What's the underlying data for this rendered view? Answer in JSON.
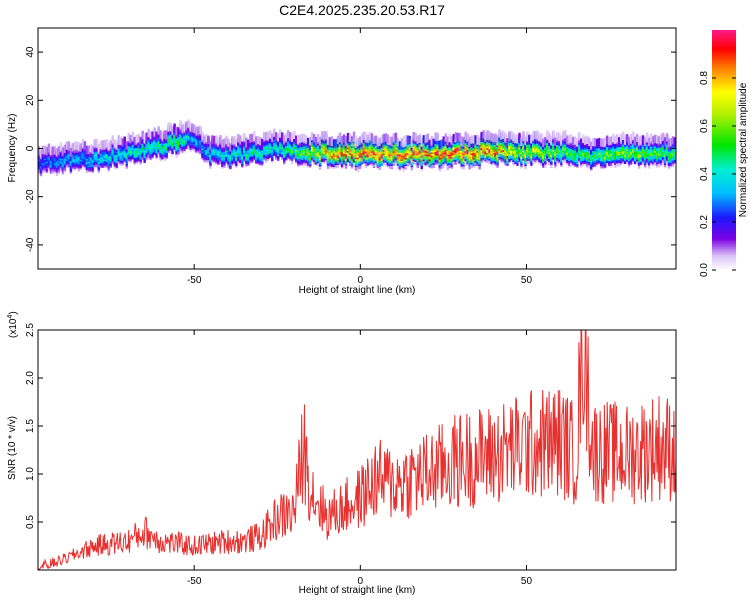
{
  "title": "C2E4.2025.235.20.53.R17",
  "chart_data": [
    {
      "type": "heatmap",
      "xlabel": "Height of straight line (km)",
      "ylabel": "Frequency (Hz)",
      "xlim": [
        -97,
        95
      ],
      "ylim": [
        -50,
        50
      ],
      "xticks": [
        -50,
        0,
        50
      ],
      "yticks": [
        -40,
        -20,
        0,
        20,
        40
      ],
      "ytick_labels": [
        "-40",
        "-20",
        "0",
        "20",
        "40"
      ],
      "colorbar": {
        "label": "Normalized spectral amplitude",
        "range": [
          0.0,
          1.0
        ],
        "ticks": [
          0.0,
          0.2,
          0.4,
          0.6,
          0.8
        ],
        "tick_labels": [
          "0.0",
          "0.2",
          "0.4",
          "0.6",
          "0.8"
        ]
      },
      "ridge": {
        "x": [
          -97,
          -90,
          -80,
          -70,
          -60,
          -55,
          -50,
          -45,
          -40,
          -30,
          -25,
          -20,
          -10,
          0,
          10,
          20,
          30,
          40,
          50,
          60,
          70,
          80,
          90,
          95
        ],
        "frequency": [
          -5,
          -4,
          -3,
          -1,
          2,
          4,
          5,
          -1,
          -2,
          0,
          1,
          0,
          -1,
          -1,
          -1,
          -1,
          -1,
          0,
          -1,
          0,
          -2,
          0,
          -1,
          0
        ],
        "amplitude": [
          0.25,
          0.3,
          0.35,
          0.4,
          0.45,
          0.5,
          0.3,
          0.35,
          0.4,
          0.45,
          0.4,
          0.5,
          0.75,
          0.9,
          0.85,
          0.85,
          0.9,
          0.85,
          0.65,
          0.55,
          0.5,
          0.6,
          0.55,
          0.5
        ]
      }
    },
    {
      "type": "line",
      "xlabel": "Height of straight line (km)",
      "ylabel": "SNR (10 * v/v)",
      "y_exponent_label": "(x10",
      "y_exponent": "4",
      "y_exponent_close": ")",
      "xlim": [
        -97,
        95
      ],
      "ylim": [
        0,
        2.5
      ],
      "xticks": [
        -50,
        0,
        50
      ],
      "yticks": [
        0.5,
        1.0,
        1.5,
        2.0,
        2.5
      ],
      "ytick_labels": [
        "0.5",
        "1.0",
        "1.5",
        "2.0",
        "2.5"
      ],
      "color": "#e8302e",
      "series": [
        {
          "x": [
            -97,
            -90,
            -80,
            -70,
            -65,
            -60,
            -50,
            -40,
            -35,
            -30,
            -25,
            -20,
            -17,
            -15,
            -10,
            0,
            5,
            10,
            20,
            30,
            40,
            50,
            60,
            65,
            67,
            70,
            80,
            90,
            95
          ],
          "y": [
            0.02,
            0.1,
            0.25,
            0.3,
            0.4,
            0.3,
            0.25,
            0.3,
            0.3,
            0.35,
            0.55,
            0.6,
            1.3,
            0.85,
            0.55,
            0.75,
            0.95,
            0.9,
            1.0,
            1.15,
            1.2,
            1.3,
            1.35,
            1.2,
            2.5,
            1.25,
            1.2,
            1.3,
            1.25
          ]
        }
      ]
    }
  ]
}
